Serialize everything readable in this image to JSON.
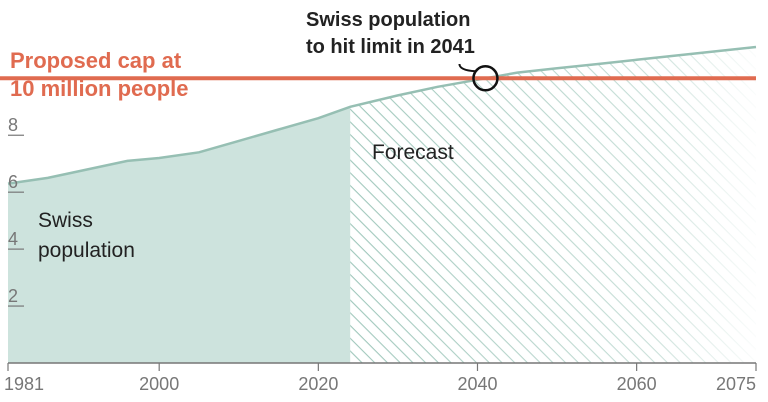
{
  "chart_data": {
    "type": "area",
    "series": [
      {
        "name": "Swiss population",
        "x": [
          1981,
          1986,
          1991,
          1996,
          2000,
          2005,
          2010,
          2015,
          2020,
          2024
        ],
        "values": [
          6.3,
          6.5,
          6.8,
          7.1,
          7.2,
          7.4,
          7.8,
          8.2,
          8.6,
          9.0
        ]
      },
      {
        "name": "Forecast",
        "x": [
          2024,
          2030,
          2035,
          2041,
          2045,
          2050,
          2055,
          2060,
          2065,
          2070,
          2075
        ],
        "values": [
          9.0,
          9.4,
          9.7,
          10.0,
          10.2,
          10.35,
          10.5,
          10.65,
          10.8,
          10.95,
          11.1
        ]
      }
    ],
    "cap": {
      "value": 10,
      "label_line1": "Proposed cap at",
      "label_line2": "10 million people"
    },
    "annotation": {
      "line1": "Swiss population",
      "line2": "to hit limit in 2041",
      "x": 2041,
      "y": 10
    },
    "area_labels": {
      "historical_line1": "Swiss",
      "historical_line2": "population",
      "forecast": "Forecast"
    },
    "x_ticks": [
      "1981",
      "2000",
      "2020",
      "2040",
      "2060",
      "2075"
    ],
    "x_tick_values": [
      1981,
      2000,
      2020,
      2040,
      2060,
      2075
    ],
    "y_ticks": [
      "2",
      "4",
      "6",
      "8"
    ],
    "y_tick_values": [
      2,
      4,
      6,
      8
    ],
    "xlim": [
      1981,
      2075
    ],
    "ylim": [
      0,
      12.75
    ],
    "colors": {
      "area": "#cde3dd",
      "line": "#96bfb3",
      "cap": "#e06b50",
      "hatch": "#9fc7bb",
      "text": "#222222",
      "axis": "#777777"
    }
  }
}
